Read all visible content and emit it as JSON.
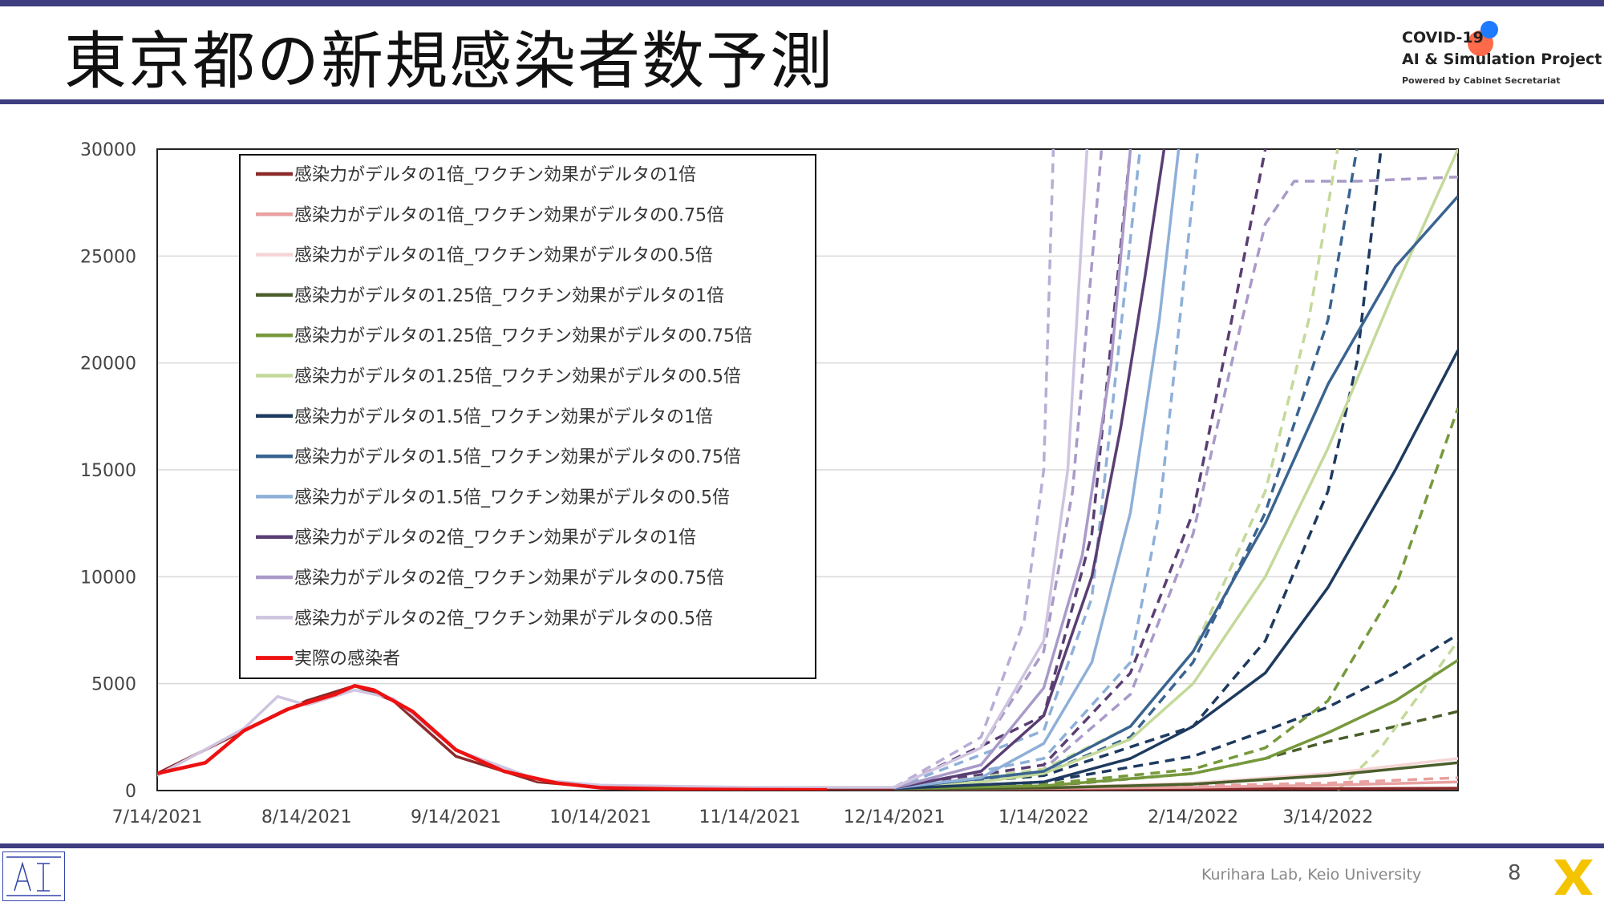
{
  "slide": {
    "title": "東京都の新規感染者数予測",
    "brand_line1": "COVID-19",
    "brand_line2": "AI & Simulation Project",
    "brand_line3": "Powered by Cabinet Secretariat",
    "footer": "Kurihara Lab, Keio University",
    "page_number": "8",
    "colors": {
      "accent": "#3d3d80"
    }
  },
  "chart_data": {
    "type": "line",
    "title": "",
    "xlabel": "",
    "ylabel": "",
    "x_axis": {
      "min": "2021-07-14",
      "max": "2022-04-10",
      "ticks": [
        {
          "date": "2021-07-14",
          "label": "7/14/2021"
        },
        {
          "date": "2021-08-14",
          "label": "8/14/2021"
        },
        {
          "date": "2021-09-14",
          "label": "9/14/2021"
        },
        {
          "date": "2021-10-14",
          "label": "10/14/2021"
        },
        {
          "date": "2021-11-14",
          "label": "11/14/2021"
        },
        {
          "date": "2021-12-14",
          "label": "12/14/2021"
        },
        {
          "date": "2022-01-14",
          "label": "1/14/2022"
        },
        {
          "date": "2022-02-14",
          "label": "2/14/2022"
        },
        {
          "date": "2022-03-14",
          "label": "3/14/2022"
        }
      ]
    },
    "y_axis": {
      "min": 0,
      "max": 30000,
      "ticks": [
        0,
        5000,
        10000,
        15000,
        20000,
        25000,
        30000
      ]
    },
    "grid": "horizontal",
    "legend_position": "top-left",
    "series": [
      {
        "name": "感染力がデルタの1倍_ワクチン効果がデルタの1倍",
        "color": "#8b2a2a",
        "style": "solid",
        "points": [
          [
            "2021-07-14",
            800
          ],
          [
            "2021-08-01",
            2800
          ],
          [
            "2021-08-14",
            4200
          ],
          [
            "2021-08-24",
            4900
          ],
          [
            "2021-09-01",
            4200
          ],
          [
            "2021-09-14",
            1600
          ],
          [
            "2021-10-01",
            400
          ],
          [
            "2021-10-14",
            150
          ],
          [
            "2021-11-14",
            80
          ],
          [
            "2021-12-14",
            60
          ],
          [
            "2022-01-14",
            60
          ],
          [
            "2022-02-14",
            80
          ],
          [
            "2022-03-14",
            90
          ],
          [
            "2022-04-10",
            110
          ]
        ]
      },
      {
        "name": "感染力がデルタの1倍_ワクチン効果がデルタの0.75倍",
        "color": "#e8a0a0",
        "style": "solid",
        "points": [
          [
            "2021-12-14",
            80
          ],
          [
            "2022-01-14",
            100
          ],
          [
            "2022-02-14",
            150
          ],
          [
            "2022-03-14",
            250
          ],
          [
            "2022-04-10",
            400
          ]
        ]
      },
      {
        "name": "感染力がデルタの1倍_ワクチン効果がデルタの0.5倍",
        "color": "#f5d5d5",
        "style": "solid",
        "points": [
          [
            "2021-12-14",
            90
          ],
          [
            "2022-01-14",
            150
          ],
          [
            "2022-02-14",
            350
          ],
          [
            "2022-03-14",
            800
          ],
          [
            "2022-04-10",
            1500
          ]
        ]
      },
      {
        "name": "感染力がデルタの1.25倍_ワクチン効果がデルタの1倍",
        "color": "#4a5e2a",
        "style": "solid",
        "points": [
          [
            "2021-12-14",
            80
          ],
          [
            "2022-01-14",
            120
          ],
          [
            "2022-02-14",
            300
          ],
          [
            "2022-03-14",
            700
          ],
          [
            "2022-04-10",
            1300
          ]
        ]
      },
      {
        "name": "感染力がデルタの1.25倍_ワクチン効果がデルタの0.75倍",
        "color": "#76993c",
        "style": "solid",
        "points": [
          [
            "2021-12-14",
            90
          ],
          [
            "2022-01-14",
            220
          ],
          [
            "2022-02-14",
            800
          ],
          [
            "2022-03-01",
            1500
          ],
          [
            "2022-03-14",
            2700
          ],
          [
            "2022-03-28",
            4200
          ],
          [
            "2022-04-10",
            6100
          ]
        ]
      },
      {
        "name": "感染力がデルタの1.25倍_ワクチン効果がデルタの0.5倍",
        "color": "#c4d99a",
        "style": "solid",
        "points": [
          [
            "2021-12-14",
            100
          ],
          [
            "2022-01-01",
            400
          ],
          [
            "2022-01-14",
            800
          ],
          [
            "2022-02-01",
            2400
          ],
          [
            "2022-02-14",
            5000
          ],
          [
            "2022-03-01",
            10000
          ],
          [
            "2022-03-14",
            16000
          ],
          [
            "2022-03-28",
            23500
          ],
          [
            "2022-04-10",
            30000
          ]
        ]
      },
      {
        "name": "感染力がデルタの1.5倍_ワクチン効果がデルタの1倍",
        "color": "#1e3a5f",
        "style": "solid",
        "points": [
          [
            "2021-12-14",
            90
          ],
          [
            "2022-01-14",
            400
          ],
          [
            "2022-02-01",
            1500
          ],
          [
            "2022-02-14",
            3000
          ],
          [
            "2022-03-01",
            5500
          ],
          [
            "2022-03-14",
            9500
          ],
          [
            "2022-03-28",
            15000
          ],
          [
            "2022-04-10",
            20600
          ]
        ]
      },
      {
        "name": "感染力がデルタの1.5倍_ワクチン効果がデルタの0.75倍",
        "color": "#3a6490",
        "style": "solid",
        "points": [
          [
            "2021-12-14",
            100
          ],
          [
            "2022-01-14",
            900
          ],
          [
            "2022-02-01",
            3000
          ],
          [
            "2022-02-14",
            6500
          ],
          [
            "2022-03-01",
            12500
          ],
          [
            "2022-03-14",
            19000
          ],
          [
            "2022-03-28",
            24500
          ],
          [
            "2022-04-10",
            27800
          ]
        ]
      },
      {
        "name": "感染力がデルタの1.5倍_ワクチン効果がデルタの0.5倍",
        "color": "#8eb0d8",
        "style": "solid",
        "points": [
          [
            "2021-12-14",
            120
          ],
          [
            "2022-01-01",
            600
          ],
          [
            "2022-01-14",
            2200
          ],
          [
            "2022-01-24",
            6000
          ],
          [
            "2022-02-01",
            13000
          ],
          [
            "2022-02-07",
            22000
          ],
          [
            "2022-02-11",
            30000
          ]
        ]
      },
      {
        "name": "感染力がデルタの2倍_ワクチン効果がデルタの1倍",
        "color": "#5a3e73",
        "style": "solid",
        "points": [
          [
            "2021-12-14",
            120
          ],
          [
            "2022-01-01",
            900
          ],
          [
            "2022-01-14",
            3500
          ],
          [
            "2022-01-24",
            10000
          ],
          [
            "2022-01-30",
            17000
          ],
          [
            "2022-02-04",
            24000
          ],
          [
            "2022-02-08",
            30000
          ]
        ]
      },
      {
        "name": "感染力がデルタの2倍_ワクチン効果がデルタの0.75倍",
        "color": "#a99ac8",
        "style": "solid",
        "points": [
          [
            "2021-12-14",
            130
          ],
          [
            "2022-01-01",
            1200
          ],
          [
            "2022-01-14",
            4800
          ],
          [
            "2022-01-22",
            11000
          ],
          [
            "2022-01-28",
            20000
          ],
          [
            "2022-02-01",
            30000
          ]
        ]
      },
      {
        "name": "感染力がデルタの2倍_ワクチン効果がデルタの0.5倍",
        "color": "#cfc5e0",
        "style": "solid",
        "points": [
          [
            "2021-07-14",
            700
          ],
          [
            "2021-08-01",
            2900
          ],
          [
            "2021-08-08",
            4400
          ],
          [
            "2021-08-14",
            4000
          ],
          [
            "2021-08-24",
            4700
          ],
          [
            "2021-09-01",
            4300
          ],
          [
            "2021-09-14",
            1900
          ],
          [
            "2021-10-01",
            500
          ],
          [
            "2021-10-14",
            250
          ],
          [
            "2021-11-14",
            150
          ],
          [
            "2021-12-14",
            150
          ],
          [
            "2022-01-01",
            2000
          ],
          [
            "2022-01-14",
            7000
          ],
          [
            "2022-01-19",
            15000
          ],
          [
            "2022-01-23",
            30000
          ]
        ]
      },
      {
        "name": "実際の感染者",
        "color": "#ee1111",
        "style": "solid",
        "points": [
          [
            "2021-07-14",
            800
          ],
          [
            "2021-07-24",
            1300
          ],
          [
            "2021-08-01",
            2800
          ],
          [
            "2021-08-10",
            3800
          ],
          [
            "2021-08-14",
            4100
          ],
          [
            "2021-08-20",
            4500
          ],
          [
            "2021-08-24",
            4900
          ],
          [
            "2021-08-28",
            4700
          ],
          [
            "2021-09-05",
            3700
          ],
          [
            "2021-09-14",
            1900
          ],
          [
            "2021-09-24",
            900
          ],
          [
            "2021-10-05",
            350
          ],
          [
            "2021-10-14",
            130
          ],
          [
            "2021-11-01",
            60
          ],
          [
            "2021-11-14",
            40
          ],
          [
            "2021-11-30",
            35
          ]
        ]
      },
      {
        "name": "",
        "color": "#b9acd6",
        "style": "dash",
        "width": 3.5,
        "points": [
          [
            "2021-12-14",
            150
          ],
          [
            "2022-01-01",
            2500
          ],
          [
            "2022-01-10",
            8000
          ],
          [
            "2022-01-14",
            15000
          ],
          [
            "2022-01-16",
            30000
          ]
        ]
      },
      {
        "name": "",
        "color": "#a99ac8",
        "style": "dash",
        "width": 3.5,
        "points": [
          [
            "2021-12-14",
            150
          ],
          [
            "2022-01-01",
            2000
          ],
          [
            "2022-01-14",
            6500
          ],
          [
            "2022-01-20",
            14000
          ],
          [
            "2022-01-26",
            30000
          ]
        ]
      },
      {
        "name": "",
        "color": "#5a3e73",
        "style": "dash",
        "width": 3.5,
        "points": [
          [
            "2021-12-14",
            120
          ],
          [
            "2022-01-14",
            3500
          ],
          [
            "2022-01-24",
            12000
          ],
          [
            "2022-02-01",
            30000
          ]
        ]
      },
      {
        "name": "",
        "color": "#8eb0d8",
        "style": "dash",
        "width": 3.5,
        "points": [
          [
            "2021-12-14",
            120
          ],
          [
            "2022-01-14",
            2800
          ],
          [
            "2022-01-24",
            9000
          ],
          [
            "2022-02-03",
            30000
          ]
        ]
      },
      {
        "name": "",
        "color": "#5a3e73",
        "style": "dash",
        "width": 3.5,
        "points": [
          [
            "2021-12-14",
            110
          ],
          [
            "2022-01-14",
            1200
          ],
          [
            "2022-02-01",
            5500
          ],
          [
            "2022-02-14",
            13000
          ],
          [
            "2022-02-22",
            22000
          ],
          [
            "2022-03-01",
            30000
          ]
        ]
      },
      {
        "name": "",
        "color": "#a99ac8",
        "style": "dash",
        "width": 3.5,
        "points": [
          [
            "2021-12-14",
            110
          ],
          [
            "2022-01-14",
            1000
          ],
          [
            "2022-02-01",
            4500
          ],
          [
            "2022-02-14",
            12000
          ],
          [
            "2022-02-22",
            20000
          ],
          [
            "2022-03-01",
            26500
          ],
          [
            "2022-03-07",
            28500
          ],
          [
            "2022-03-20",
            28500
          ],
          [
            "2022-04-10",
            28700
          ]
        ]
      },
      {
        "name": "",
        "color": "#8eb0d8",
        "style": "dash",
        "width": 3.5,
        "points": [
          [
            "2021-12-14",
            110
          ],
          [
            "2022-01-14",
            1500
          ],
          [
            "2022-02-01",
            6000
          ],
          [
            "2022-02-07",
            13000
          ],
          [
            "2022-02-15",
            30000
          ]
        ]
      },
      {
        "name": "",
        "color": "#1e3a5f",
        "style": "dash",
        "width": 3.5,
        "points": [
          [
            "2021-12-14",
            100
          ],
          [
            "2022-01-14",
            700
          ],
          [
            "2022-02-14",
            3000
          ],
          [
            "2022-03-01",
            7000
          ],
          [
            "2022-03-14",
            14000
          ],
          [
            "2022-03-20",
            20000
          ],
          [
            "2022-03-25",
            30000
          ]
        ]
      },
      {
        "name": "",
        "color": "#3a6490",
        "style": "dash",
        "width": 3.5,
        "points": [
          [
            "2021-12-14",
            100
          ],
          [
            "2022-01-14",
            800
          ],
          [
            "2022-02-01",
            2500
          ],
          [
            "2022-02-14",
            6000
          ],
          [
            "2022-03-01",
            13000
          ],
          [
            "2022-03-14",
            22000
          ],
          [
            "2022-03-20",
            30000
          ]
        ]
      },
      {
        "name": "",
        "color": "#1e3a5f",
        "style": "dash",
        "width": 3.5,
        "points": [
          [
            "2021-12-14",
            90
          ],
          [
            "2022-01-14",
            400
          ],
          [
            "2022-02-14",
            1600
          ],
          [
            "2022-03-01",
            2800
          ],
          [
            "2022-03-14",
            3900
          ],
          [
            "2022-03-28",
            5500
          ],
          [
            "2022-04-10",
            7300
          ]
        ]
      },
      {
        "name": "",
        "color": "#c4d99a",
        "style": "dash",
        "width": 3.5,
        "points": [
          [
            "2021-12-14",
            100
          ],
          [
            "2022-01-14",
            1000
          ],
          [
            "2022-02-01",
            3000
          ],
          [
            "2022-02-14",
            6500
          ],
          [
            "2022-03-01",
            14000
          ],
          [
            "2022-03-10",
            22000
          ],
          [
            "2022-03-16",
            30000
          ]
        ]
      },
      {
        "name": "",
        "color": "#76993c",
        "style": "dash",
        "width": 3.5,
        "points": [
          [
            "2021-12-14",
            90
          ],
          [
            "2022-01-14",
            300
          ],
          [
            "2022-02-14",
            1000
          ],
          [
            "2022-03-01",
            2000
          ],
          [
            "2022-03-14",
            4200
          ],
          [
            "2022-03-28",
            9500
          ],
          [
            "2022-04-10",
            17900
          ]
        ]
      },
      {
        "name": "",
        "color": "#4a5e2a",
        "style": "dash",
        "width": 3.5,
        "points": [
          [
            "2021-12-14",
            80
          ],
          [
            "2022-01-14",
            200
          ],
          [
            "2022-02-14",
            800
          ],
          [
            "2022-03-01",
            1500
          ],
          [
            "2022-03-14",
            2300
          ],
          [
            "2022-03-28",
            3000
          ],
          [
            "2022-04-10",
            3700
          ]
        ]
      },
      {
        "name": "",
        "color": "#e8a0a0",
        "style": "dash",
        "width": 3.5,
        "points": [
          [
            "2021-12-14",
            80
          ],
          [
            "2022-01-14",
            120
          ],
          [
            "2022-02-14",
            220
          ],
          [
            "2022-03-14",
            350
          ],
          [
            "2022-04-10",
            600
          ]
        ]
      },
      {
        "name": "",
        "color": "#c4d99a",
        "style": "dash",
        "width": 3.5,
        "points": [
          [
            "2022-03-16",
            0
          ],
          [
            "2022-03-25",
            2000
          ],
          [
            "2022-04-10",
            7000
          ]
        ]
      }
    ]
  }
}
